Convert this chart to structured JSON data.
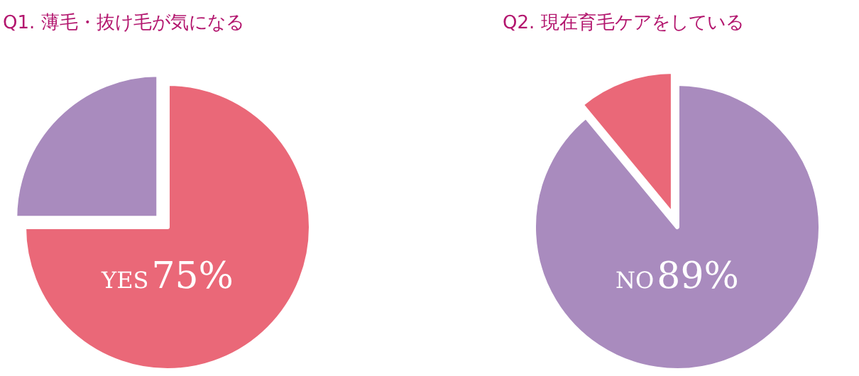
{
  "chart_data": [
    {
      "type": "pie",
      "title": "Q1. 薄毛・抜け毛が気になる",
      "categories": [
        "YES",
        null
      ],
      "values": [
        75,
        25
      ],
      "colors": [
        "#ea6878",
        "#a98bbe"
      ],
      "value_labels": [
        "75%",
        null
      ]
    },
    {
      "type": "pie",
      "title": "Q2. 現在育毛ケアをしている",
      "categories": [
        "NO",
        null
      ],
      "values": [
        89,
        11
      ],
      "colors": [
        "#a98bbe",
        "#ea6878"
      ],
      "value_labels": [
        "89%",
        null
      ]
    }
  ]
}
